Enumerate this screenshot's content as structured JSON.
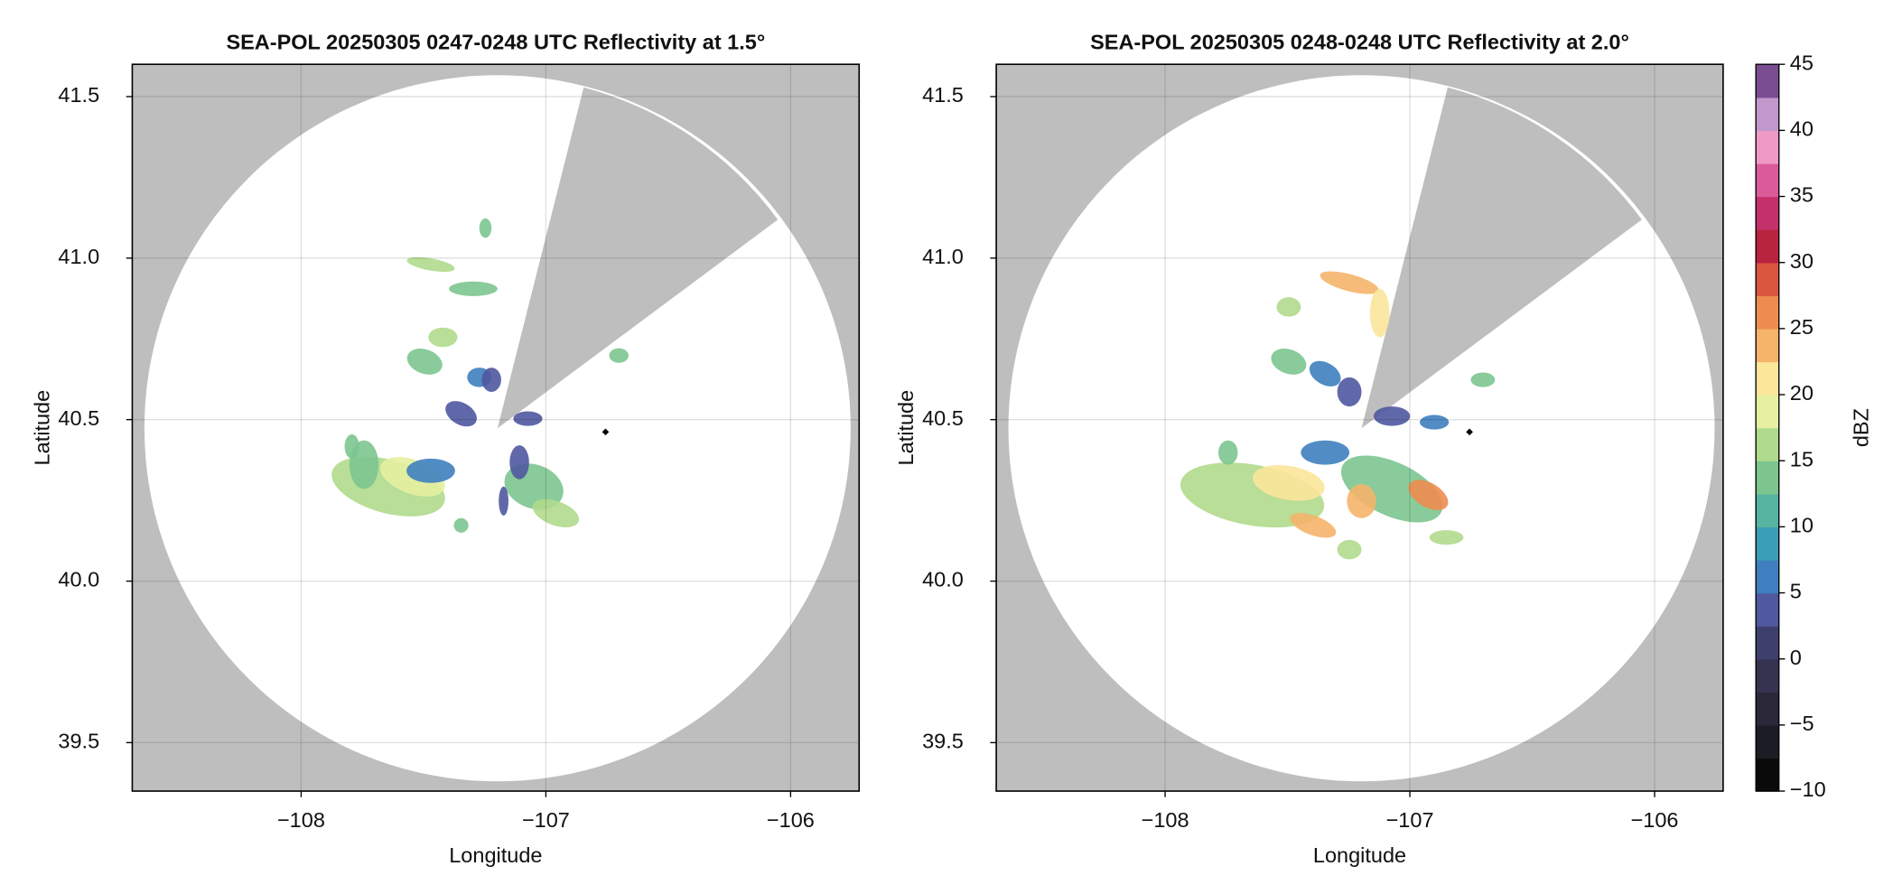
{
  "chart_data": [
    {
      "type": "radar",
      "title": "SEA-POL 20250305 0247-0248 UTC Reflectivity at 1.5°",
      "x_label": "Longitude",
      "y_label": "Latitude",
      "xlim": [
        -108.69,
        -105.72
      ],
      "ylim": [
        39.35,
        41.6
      ],
      "xticks": [
        {
          "value": -108,
          "label": "−108"
        },
        {
          "value": -107,
          "label": "−107"
        },
        {
          "value": -106,
          "label": "−106"
        }
      ],
      "yticks": [
        {
          "value": 39.5,
          "label": "39.5"
        },
        {
          "value": 40,
          "label": "40.0"
        },
        {
          "value": 40.5,
          "label": "40.5"
        },
        {
          "value": 41,
          "label": "41.0"
        },
        {
          "value": 41.5,
          "label": "41.5"
        }
      ],
      "grid": true
    },
    {
      "type": "radar",
      "title": "SEA-POL 20250305 0248-0248 UTC Reflectivity at 2.0°",
      "x_label": "Longitude",
      "y_label": "Latitude",
      "xlim": [
        -108.69,
        -105.72
      ],
      "ylim": [
        39.35,
        41.6
      ],
      "xticks": [
        {
          "value": -108,
          "label": "−108"
        },
        {
          "value": -107,
          "label": "−107"
        },
        {
          "value": -106,
          "label": "−106"
        }
      ],
      "yticks": [
        {
          "value": 39.5,
          "label": "39.5"
        },
        {
          "value": 40,
          "label": "40.0"
        },
        {
          "value": 40.5,
          "label": "40.5"
        },
        {
          "value": 41,
          "label": "41.0"
        },
        {
          "value": 41.5,
          "label": "41.5"
        }
      ],
      "grid": true
    }
  ],
  "colorbar": {
    "label": "dBZ",
    "lim": [
      -10,
      45
    ],
    "ticks": [
      {
        "value": -10,
        "label": "−10"
      },
      {
        "value": -5,
        "label": "−5"
      },
      0,
      5,
      10,
      15,
      20,
      25,
      30,
      35,
      40,
      45
    ],
    "colors": [
      "#0a0a0a",
      "#1c1c24",
      "#2a2838",
      "#35334f",
      "#3f3f6e",
      "#5058a0",
      "#3f7fbf",
      "#3b9eb8",
      "#56b4a0",
      "#7cc58f",
      "#b0da8c",
      "#e6f0a0",
      "#fbe69a",
      "#f5b46a",
      "#ee8c50",
      "#d9553e",
      "#b8233e",
      "#c3306a",
      "#da5a9a",
      "#ee99c6",
      "#c098cc",
      "#7a4d93"
    ]
  }
}
